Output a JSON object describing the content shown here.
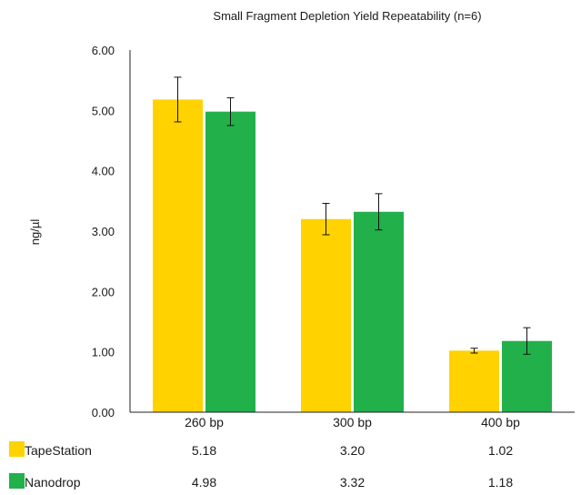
{
  "chart_data": {
    "type": "bar",
    "title": "Small Fragment Depletion Yield Repeatability (n=6)",
    "xlabel": "",
    "ylabel": "ng/µl",
    "ylim": [
      0,
      6
    ],
    "yticks": [
      "0.00",
      "1.00",
      "2.00",
      "3.00",
      "4.00",
      "5.00",
      "6.00"
    ],
    "categories": [
      "260 bp",
      "300 bp",
      "400 bp"
    ],
    "grid": false,
    "legend": "bottom-table",
    "series": [
      {
        "name": "TapeStation",
        "color": "#FFD200",
        "values": [
          5.18,
          3.2,
          1.02
        ],
        "value_labels": [
          "5.18",
          "3.20",
          "1.02"
        ],
        "errors": [
          0.37,
          0.26,
          0.04
        ]
      },
      {
        "name": "Nanodrop",
        "color": "#22B04B",
        "values": [
          4.98,
          3.32,
          1.18
        ],
        "value_labels": [
          "4.98",
          "3.32",
          "1.18"
        ],
        "errors": [
          0.23,
          0.3,
          0.22
        ]
      }
    ]
  }
}
